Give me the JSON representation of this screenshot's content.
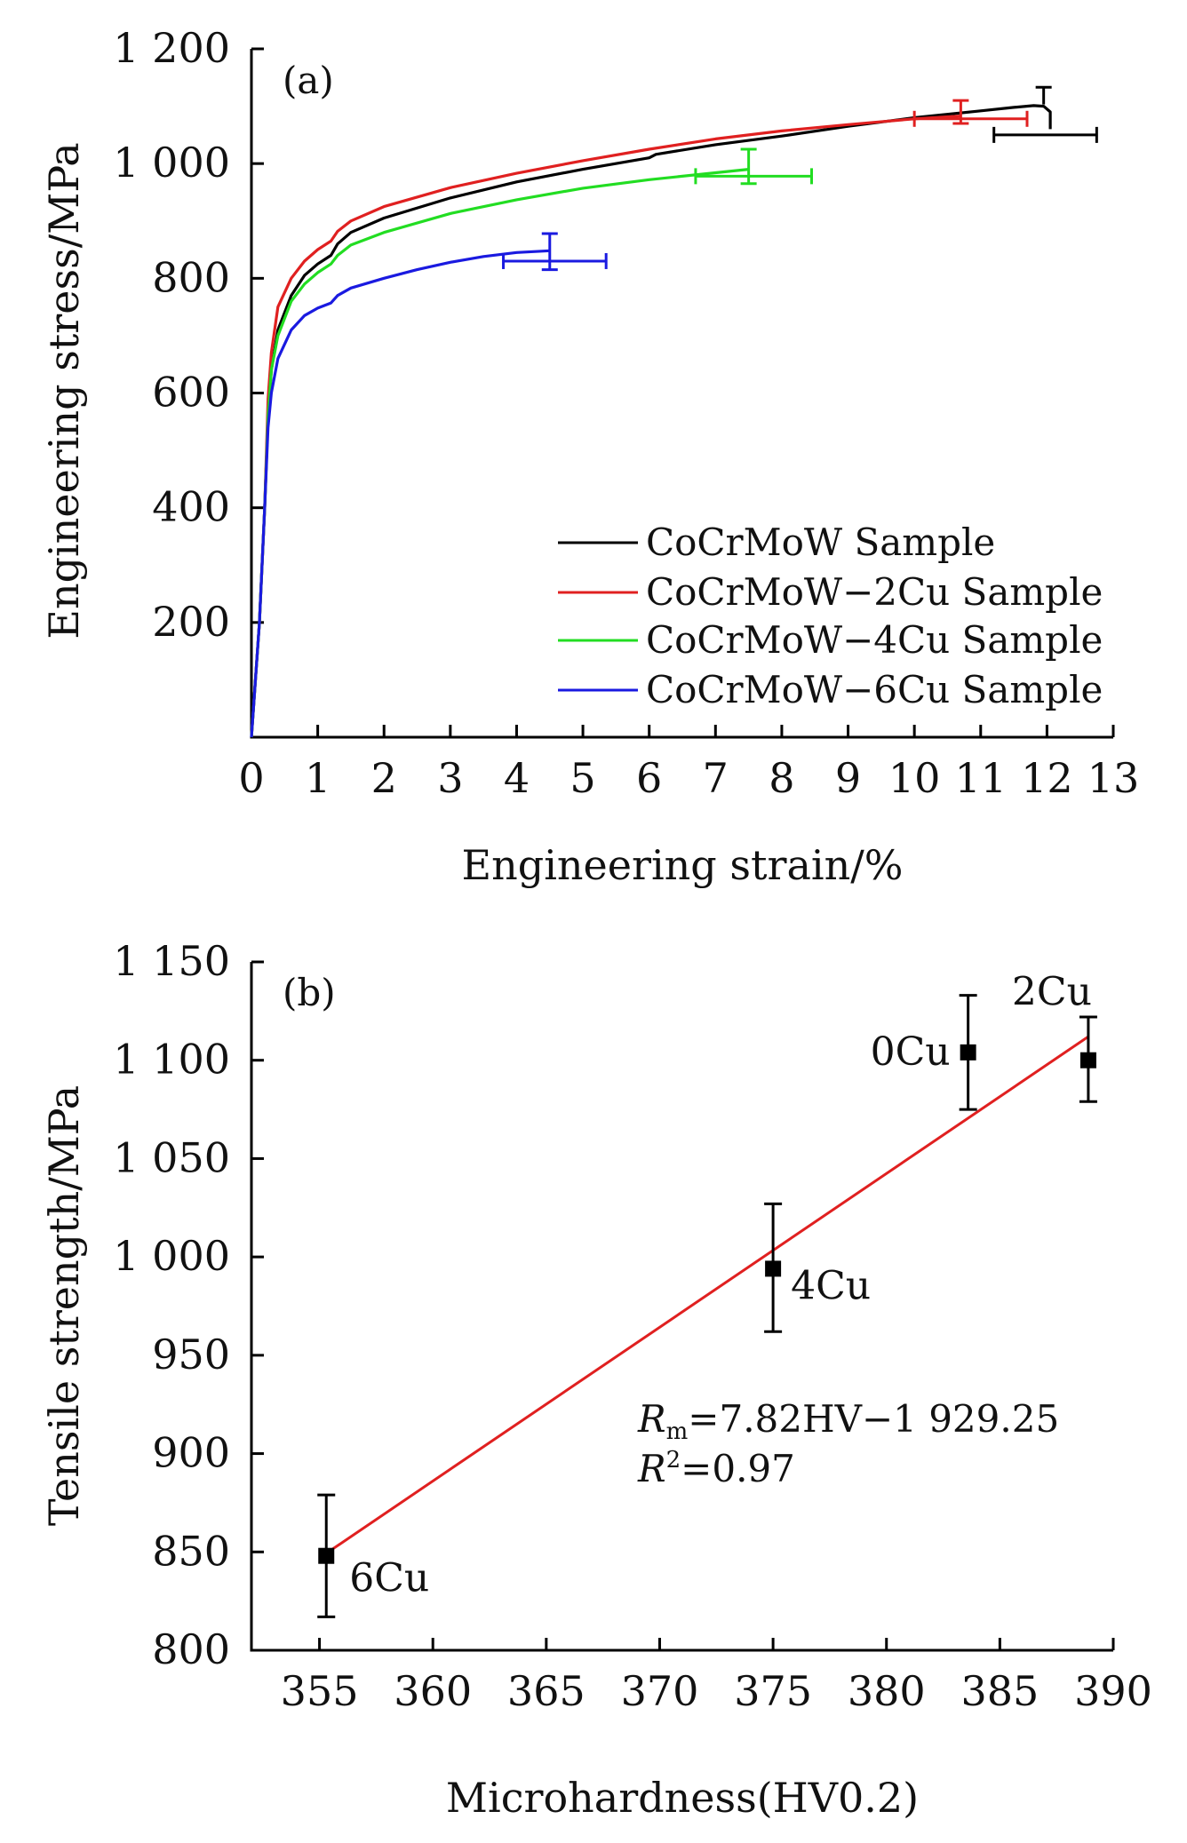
{
  "chart_data": [
    {
      "type": "line",
      "panel_label": "(a)",
      "xlabel": "Engineering strain/%",
      "ylabel": "Engineering stress/MPa",
      "xlim": [
        0,
        13
      ],
      "ylim": [
        0,
        1200
      ],
      "x_ticks": [
        0,
        1,
        2,
        3,
        4,
        5,
        6,
        7,
        8,
        9,
        10,
        11,
        12,
        13
      ],
      "x_tick_labels": [
        "0",
        "1",
        "2",
        "3",
        "4",
        "5",
        "6",
        "7",
        "8",
        "9",
        "10",
        "11",
        "12",
        "13"
      ],
      "y_ticks": [
        200,
        400,
        600,
        800,
        1000,
        1200
      ],
      "y_tick_labels": [
        "200",
        "400",
        "600",
        "800",
        "1 000",
        "1 200"
      ],
      "legend_placement": "lower-right",
      "series": [
        {
          "name": "CoCrMoW Sample",
          "color": "#000000",
          "x": [
            0.0,
            0.12,
            0.2,
            0.25,
            0.3,
            0.4,
            0.6,
            0.8,
            1.0,
            1.2,
            1.3,
            1.5,
            2.0,
            3.0,
            4.0,
            5.0,
            6.0,
            6.1,
            7.0,
            8.0,
            9.0,
            10.0,
            11.0,
            11.5,
            11.8,
            11.95,
            12.05,
            12.05
          ],
          "y": [
            0,
            200,
            400,
            560,
            640,
            710,
            770,
            805,
            825,
            840,
            860,
            880,
            905,
            940,
            968,
            990,
            1010,
            1016,
            1033,
            1048,
            1065,
            1080,
            1092,
            1098,
            1101,
            1100,
            1090,
            1060
          ],
          "error_x": {
            "x": 11.95,
            "y": 1050,
            "minus": 0.75,
            "plus": 0.8
          },
          "error_y": {
            "x": 11.95,
            "y": 1103,
            "minus": 0,
            "plus": 30
          }
        },
        {
          "name": "CoCrMoW−2Cu Sample",
          "color": "#e02020",
          "x": [
            0.0,
            0.12,
            0.2,
            0.25,
            0.3,
            0.4,
            0.6,
            0.8,
            1.0,
            1.2,
            1.3,
            1.5,
            2.0,
            3.0,
            4.0,
            5.0,
            6.0,
            7.0,
            8.0,
            9.0,
            10.0,
            10.7
          ],
          "y": [
            0,
            200,
            400,
            590,
            670,
            750,
            800,
            830,
            850,
            865,
            882,
            900,
            925,
            958,
            983,
            1005,
            1025,
            1043,
            1057,
            1068,
            1078,
            1083
          ],
          "error_x": {
            "x": 10.7,
            "y": 1078,
            "minus": 0.7,
            "plus": 1.0
          },
          "error_y": {
            "x": 10.7,
            "y": 1088,
            "minus": 18,
            "plus": 22
          }
        },
        {
          "name": "CoCrMoW−4Cu Sample",
          "color": "#22dd22",
          "x": [
            0.0,
            0.12,
            0.2,
            0.25,
            0.3,
            0.4,
            0.6,
            0.8,
            1.0,
            1.2,
            1.3,
            1.5,
            2.0,
            3.0,
            4.0,
            5.0,
            6.0,
            7.0,
            7.5
          ],
          "y": [
            0,
            200,
            400,
            560,
            640,
            700,
            760,
            790,
            810,
            825,
            840,
            858,
            880,
            913,
            937,
            957,
            972,
            984,
            990
          ],
          "error_x": {
            "x": 7.5,
            "y": 978,
            "minus": 0.8,
            "plus": 0.95
          },
          "error_y": {
            "x": 7.5,
            "y": 995,
            "minus": 30,
            "plus": 30
          }
        },
        {
          "name": "CoCrMoW−6Cu Sample",
          "color": "#1a1ae0",
          "x": [
            0.0,
            0.12,
            0.2,
            0.25,
            0.3,
            0.4,
            0.6,
            0.8,
            1.0,
            1.2,
            1.3,
            1.5,
            2.0,
            2.5,
            3.0,
            3.5,
            4.0,
            4.5
          ],
          "y": [
            0,
            200,
            400,
            540,
            600,
            660,
            710,
            735,
            748,
            757,
            770,
            783,
            800,
            815,
            828,
            838,
            845,
            848
          ],
          "error_x": {
            "x": 4.5,
            "y": 830,
            "minus": 0.7,
            "plus": 0.85
          },
          "error_y": {
            "x": 4.5,
            "y": 848,
            "minus": 33,
            "plus": 30
          }
        }
      ]
    },
    {
      "type": "scatter",
      "panel_label": "(b)",
      "xlabel": "Microhardness(HV0.2)",
      "ylabel": "Tensile strength/MPa",
      "xlim": [
        352,
        390
      ],
      "ylim": [
        800,
        1150
      ],
      "x_ticks": [
        355,
        360,
        365,
        370,
        375,
        380,
        385,
        390
      ],
      "x_tick_labels": [
        "355",
        "360",
        "365",
        "370",
        "375",
        "380",
        "385",
        "390"
      ],
      "y_ticks": [
        800,
        850,
        900,
        950,
        1000,
        1050,
        1100,
        1150
      ],
      "y_tick_labels": [
        "800",
        "850",
        "900",
        "950",
        "1 000",
        "1 050",
        "1 100",
        "1 150"
      ],
      "points": [
        {
          "label": "6Cu",
          "x": 355.3,
          "y": 848,
          "err_minus": 31,
          "err_plus": 31
        },
        {
          "label": "4Cu",
          "x": 375.0,
          "y": 994,
          "err_minus": 32,
          "err_plus": 33
        },
        {
          "label": "0Cu",
          "x": 383.6,
          "y": 1104,
          "err_minus": 29,
          "err_plus": 29
        },
        {
          "label": "2Cu",
          "x": 388.9,
          "y": 1100,
          "err_minus": 21,
          "err_plus": 22
        }
      ],
      "fit_line": {
        "color": "#e02020",
        "x": [
          355.3,
          388.9
        ],
        "y": [
          849.3,
          1112.0
        ]
      },
      "annotation": {
        "equation_var": "R",
        "equation_sub": "m",
        "equation_rest": "=7.82HV−1 929.25",
        "r2_var": "R",
        "r2_sup": "2",
        "r2_rest": "=0.97"
      }
    }
  ]
}
